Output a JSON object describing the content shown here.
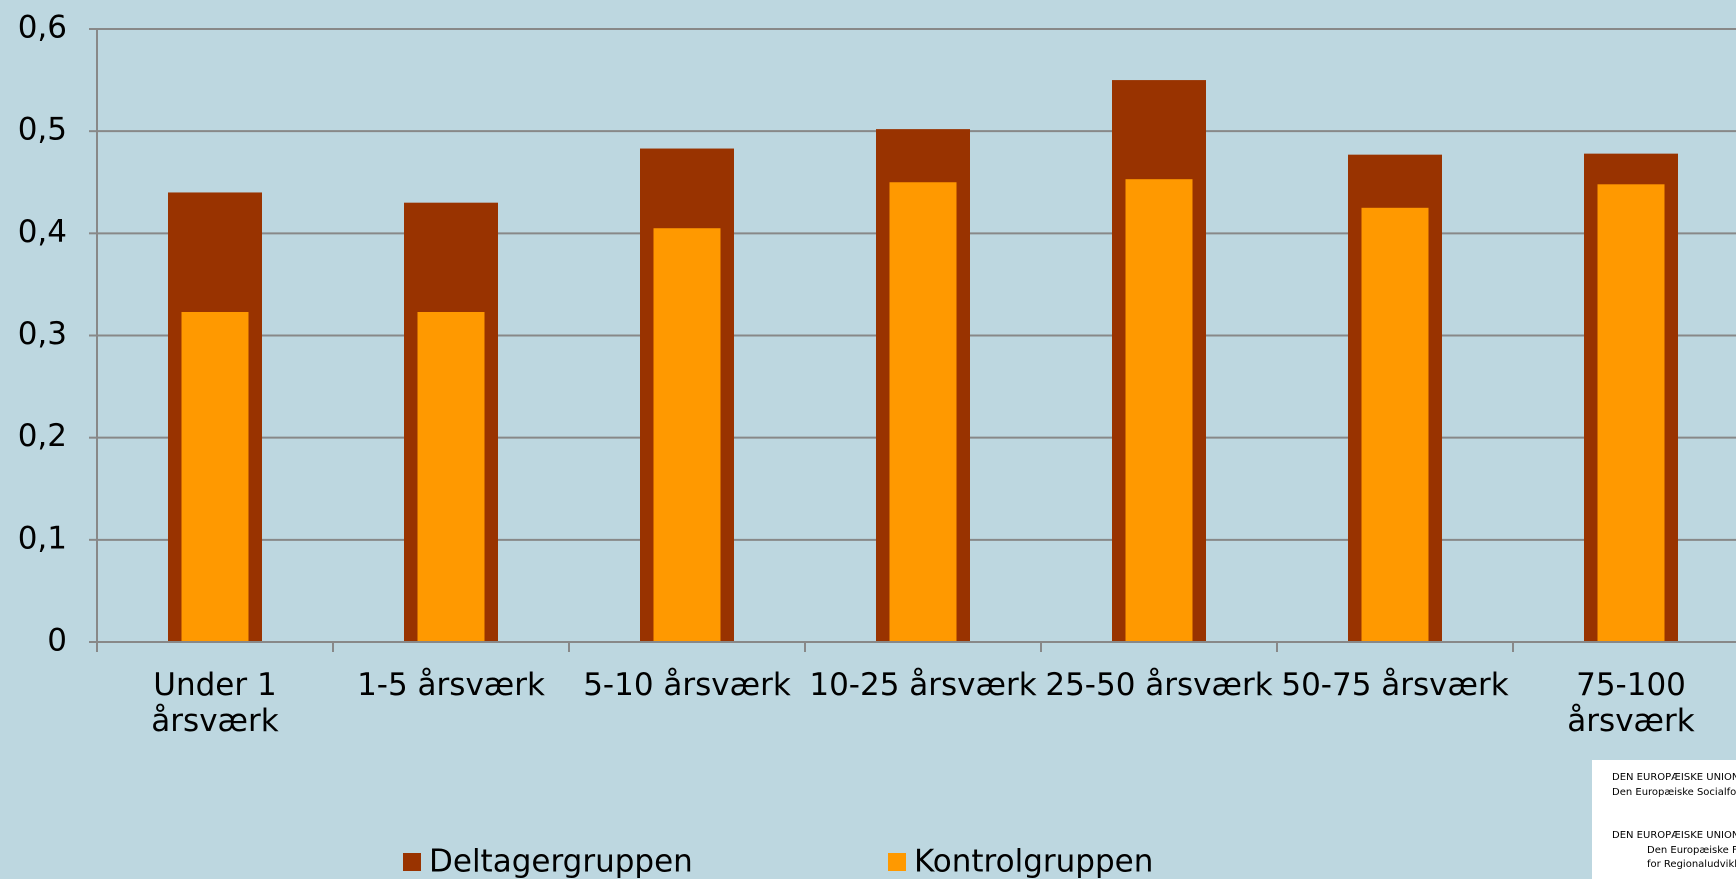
{
  "chart_data": {
    "type": "bar",
    "categories": [
      "Under 1 årsværk",
      "1-5 årsværk",
      "5-10 årsværk",
      "10-25 årsværk",
      "25-50 årsværk",
      "50-75 årsværk",
      "75-100 årsværk"
    ],
    "series": [
      {
        "name": "Deltagergruppen",
        "color": "#993300",
        "values": [
          0.44,
          0.43,
          0.483,
          0.502,
          0.55,
          0.477,
          0.478
        ]
      },
      {
        "name": "Kontrolgruppen",
        "color": "#ff9900",
        "values": [
          0.323,
          0.323,
          0.405,
          0.45,
          0.453,
          0.425,
          0.448
        ]
      }
    ],
    "ylim": [
      0,
      0.6
    ],
    "yticks": [
      0,
      {
        "value": 0.1,
        "label": "0,1"
      },
      {
        "value": 0.2,
        "label": "0,2"
      },
      {
        "value": 0.3,
        "label": "0,3"
      },
      {
        "value": 0.4,
        "label": "0,4"
      },
      {
        "value": 0.5,
        "label": "0,5"
      },
      {
        "value": 0.6,
        "label": "0,6"
      }
    ],
    "grid": true,
    "legend": "bottom",
    "logo": [
      "DEN EUROPÆISKE UNION",
      "Den Europæiske Socialfond",
      "DEN EUROPÆISKE UNION",
      "Den Europæiske Fond",
      "for Regionaludvikling"
    ]
  }
}
